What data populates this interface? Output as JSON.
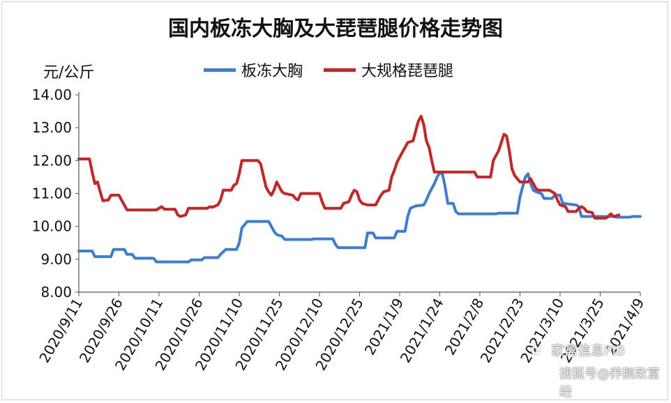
{
  "chart_data": {
    "type": "line",
    "title": "国内板冻大胸及大琵琶腿价格走势图",
    "ylabel": "元/公斤",
    "xlabel": "",
    "ylim": [
      8,
      14
    ],
    "yticks": [
      "8.00",
      "9.00",
      "10.00",
      "11.00",
      "12.00",
      "13.00",
      "14.00"
    ],
    "x_tick_labels": [
      "2020/9/11",
      "2020/9/26",
      "2020/10/11",
      "2020/10/26",
      "2020/11/10",
      "2020/11/25",
      "2020/12/10",
      "2020/12/25",
      "2021/1/9",
      "2021/1/24",
      "2021/2/8",
      "2021/2/23",
      "2021/3/10",
      "2021/3/25",
      "2021/4/9"
    ],
    "grid": false,
    "legend_position": "top",
    "series": [
      {
        "name": "板冻大胸",
        "color": "#3a7dd6",
        "points": [
          [
            0,
            9.25
          ],
          [
            5,
            9.25
          ],
          [
            6,
            9.08
          ],
          [
            12,
            9.08
          ],
          [
            13,
            9.3
          ],
          [
            17,
            9.3
          ],
          [
            18,
            9.15
          ],
          [
            20,
            9.15
          ],
          [
            21,
            9.03
          ],
          [
            28,
            9.03
          ],
          [
            29,
            8.92
          ],
          [
            41,
            8.92
          ],
          [
            42,
            8.98
          ],
          [
            46,
            8.98
          ],
          [
            47,
            9.05
          ],
          [
            52,
            9.05
          ],
          [
            53,
            9.15
          ],
          [
            55,
            9.3
          ],
          [
            59,
            9.3
          ],
          [
            60,
            9.5
          ],
          [
            61,
            9.95
          ],
          [
            62,
            10.05
          ],
          [
            63,
            10.15
          ],
          [
            71,
            10.15
          ],
          [
            72,
            10.0
          ],
          [
            73,
            9.85
          ],
          [
            74,
            9.75
          ],
          [
            76,
            9.7
          ],
          [
            77,
            9.6
          ],
          [
            87,
            9.6
          ],
          [
            88,
            9.62
          ],
          [
            95,
            9.62
          ],
          [
            96,
            9.45
          ],
          [
            97,
            9.35
          ],
          [
            107,
            9.35
          ],
          [
            108,
            9.8
          ],
          [
            110,
            9.8
          ],
          [
            111,
            9.65
          ],
          [
            118,
            9.65
          ],
          [
            119,
            9.85
          ],
          [
            122,
            9.85
          ],
          [
            123,
            10.3
          ],
          [
            124,
            10.55
          ],
          [
            126,
            10.62
          ],
          [
            129,
            10.65
          ],
          [
            130,
            10.8
          ],
          [
            131,
            11.0
          ],
          [
            133,
            11.3
          ],
          [
            134,
            11.5
          ],
          [
            135,
            11.62
          ],
          [
            136,
            11.6
          ],
          [
            137,
            11.2
          ],
          [
            138,
            10.7
          ],
          [
            140,
            10.7
          ],
          [
            141,
            10.45
          ],
          [
            142,
            10.38
          ],
          [
            156,
            10.38
          ],
          [
            157,
            10.4
          ],
          [
            164,
            10.4
          ],
          [
            165,
            10.9
          ],
          [
            166,
            11.2
          ],
          [
            167,
            11.5
          ],
          [
            168,
            11.6
          ],
          [
            169,
            11.3
          ],
          [
            170,
            11.1
          ],
          [
            171,
            11.05
          ],
          [
            173,
            11.0
          ],
          [
            174,
            10.85
          ],
          [
            177,
            10.85
          ],
          [
            178,
            10.95
          ],
          [
            180,
            10.95
          ],
          [
            181,
            10.7
          ],
          [
            186,
            10.65
          ],
          [
            187,
            10.6
          ],
          [
            188,
            10.3
          ],
          [
            200,
            10.3
          ],
          [
            201,
            10.28
          ],
          [
            206,
            10.28
          ],
          [
            207,
            10.3
          ],
          [
            210,
            10.3
          ]
        ]
      },
      {
        "name": "大规格琵琶腿",
        "color": "#cc2222",
        "points": [
          [
            0,
            12.05
          ],
          [
            4,
            12.05
          ],
          [
            5,
            11.65
          ],
          [
            6,
            11.3
          ],
          [
            7,
            11.35
          ],
          [
            8,
            11.05
          ],
          [
            9,
            10.78
          ],
          [
            11,
            10.8
          ],
          [
            12,
            10.95
          ],
          [
            15,
            10.95
          ],
          [
            16,
            10.8
          ],
          [
            17,
            10.65
          ],
          [
            18,
            10.5
          ],
          [
            29,
            10.5
          ],
          [
            30,
            10.55
          ],
          [
            31,
            10.6
          ],
          [
            32,
            10.52
          ],
          [
            36,
            10.52
          ],
          [
            37,
            10.35
          ],
          [
            38,
            10.3
          ],
          [
            40,
            10.35
          ],
          [
            41,
            10.55
          ],
          [
            48,
            10.55
          ],
          [
            49,
            10.6
          ],
          [
            50,
            10.58
          ],
          [
            51,
            10.62
          ],
          [
            52,
            10.65
          ],
          [
            53,
            10.8
          ],
          [
            54,
            11.1
          ],
          [
            57,
            11.1
          ],
          [
            58,
            11.25
          ],
          [
            59,
            11.3
          ],
          [
            60,
            11.6
          ],
          [
            61,
            12.0
          ],
          [
            67,
            12.0
          ],
          [
            68,
            11.9
          ],
          [
            69,
            11.55
          ],
          [
            70,
            11.2
          ],
          [
            71,
            11.05
          ],
          [
            72,
            10.95
          ],
          [
            73,
            11.1
          ],
          [
            74,
            11.35
          ],
          [
            75,
            11.2
          ],
          [
            76,
            11.05
          ],
          [
            77,
            11.0
          ],
          [
            80,
            10.95
          ],
          [
            81,
            10.85
          ],
          [
            82,
            10.8
          ],
          [
            83,
            11.0
          ],
          [
            90,
            11.0
          ],
          [
            91,
            10.75
          ],
          [
            92,
            10.55
          ],
          [
            98,
            10.55
          ],
          [
            99,
            10.7
          ],
          [
            101,
            10.75
          ],
          [
            102,
            10.95
          ],
          [
            103,
            11.1
          ],
          [
            104,
            11.05
          ],
          [
            105,
            10.8
          ],
          [
            106,
            10.7
          ],
          [
            108,
            10.65
          ],
          [
            111,
            10.65
          ],
          [
            112,
            10.8
          ],
          [
            113,
            10.95
          ],
          [
            114,
            11.05
          ],
          [
            116,
            11.1
          ],
          [
            117,
            11.5
          ],
          [
            118,
            11.7
          ],
          [
            119,
            11.95
          ],
          [
            120,
            12.1
          ],
          [
            121,
            12.25
          ],
          [
            122,
            12.4
          ],
          [
            123,
            12.55
          ],
          [
            125,
            12.6
          ],
          [
            126,
            12.9
          ],
          [
            127,
            13.2
          ],
          [
            128,
            13.35
          ],
          [
            129,
            13.1
          ],
          [
            130,
            12.6
          ],
          [
            131,
            12.4
          ],
          [
            132,
            12.0
          ],
          [
            133,
            11.65
          ],
          [
            148,
            11.65
          ],
          [
            149,
            11.5
          ],
          [
            154,
            11.5
          ],
          [
            155,
            12.0
          ],
          [
            157,
            12.3
          ],
          [
            158,
            12.55
          ],
          [
            159,
            12.8
          ],
          [
            160,
            12.75
          ],
          [
            161,
            12.3
          ],
          [
            162,
            11.75
          ],
          [
            163,
            11.55
          ],
          [
            164,
            11.45
          ],
          [
            165,
            11.35
          ],
          [
            168,
            11.35
          ],
          [
            169,
            11.45
          ],
          [
            170,
            11.3
          ],
          [
            171,
            11.15
          ],
          [
            172,
            11.1
          ],
          [
            176,
            11.1
          ],
          [
            177,
            11.05
          ],
          [
            178,
            11.0
          ],
          [
            179,
            10.8
          ],
          [
            180,
            10.65
          ],
          [
            182,
            10.6
          ],
          [
            183,
            10.45
          ],
          [
            186,
            10.45
          ],
          [
            187,
            10.55
          ],
          [
            188,
            10.6
          ],
          [
            189,
            10.55
          ],
          [
            190,
            10.45
          ],
          [
            192,
            10.42
          ],
          [
            193,
            10.25
          ],
          [
            197,
            10.25
          ],
          [
            198,
            10.3
          ],
          [
            199,
            10.38
          ],
          [
            200,
            10.3
          ],
          [
            201,
            10.32
          ],
          [
            202,
            10.35
          ]
        ]
      }
    ]
  },
  "watermark": {
    "account": "家禽信息PIB",
    "platform": "搜狐号@养鹅致富经"
  }
}
